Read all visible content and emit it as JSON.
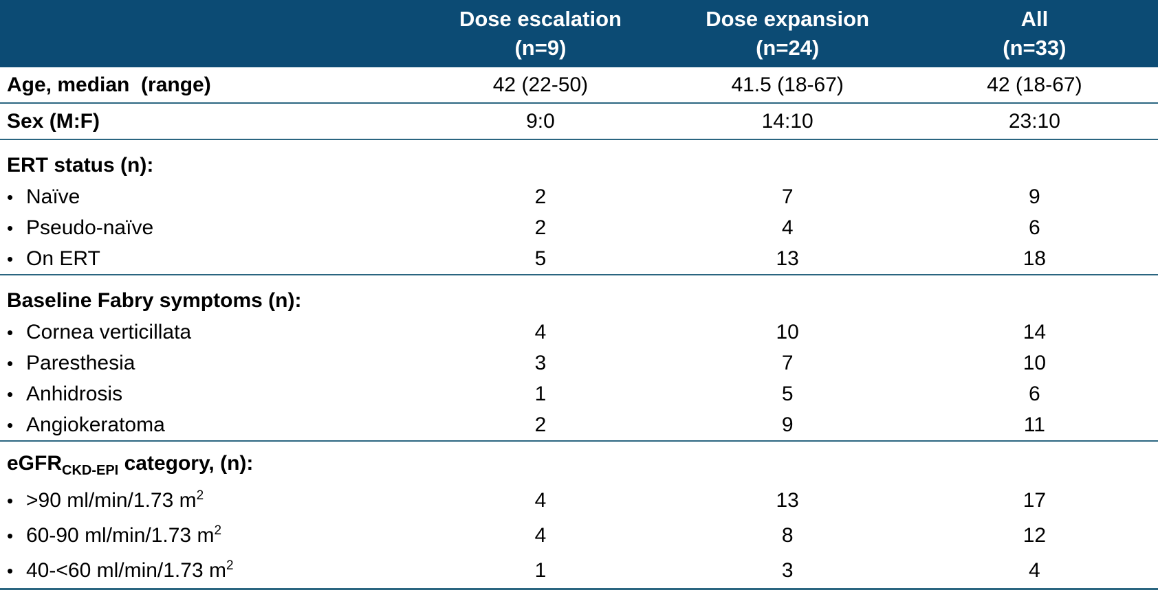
{
  "table": {
    "header": {
      "columns": [
        {
          "line1": "Dose escalation",
          "line2": "(n=9)"
        },
        {
          "line1": "Dose expansion",
          "line2": "(n=24)"
        },
        {
          "line1": "All",
          "line2": "(n=33)"
        }
      ]
    },
    "simple_rows": [
      {
        "label": "Age, median  (range)",
        "values": [
          "42 (22-50)",
          "41.5 (18-67)",
          "42 (18-67)"
        ]
      },
      {
        "label": "Sex (M:F)",
        "values": [
          "9:0",
          "14:10",
          "23:10"
        ]
      }
    ],
    "sections": [
      {
        "title": "ERT status (n):",
        "rows": [
          {
            "label": "Naïve",
            "values": [
              "2",
              "7",
              "9"
            ]
          },
          {
            "label": "Pseudo-naïve",
            "values": [
              "2",
              "4",
              "6"
            ]
          },
          {
            "label": "On ERT",
            "values": [
              "5",
              "13",
              "18"
            ]
          }
        ]
      },
      {
        "title": "Baseline Fabry symptoms (n):",
        "rows": [
          {
            "label": "Cornea verticillata",
            "values": [
              "4",
              "10",
              "14"
            ]
          },
          {
            "label": "Paresthesia",
            "values": [
              "3",
              "7",
              "10"
            ]
          },
          {
            "label": "Anhidrosis",
            "values": [
              "1",
              "5",
              "6"
            ]
          },
          {
            "label": "Angiokeratoma",
            "values": [
              "2",
              "9",
              "11"
            ]
          }
        ]
      },
      {
        "title_main": "eGFR",
        "title_sub": "CKD-EPI",
        "title_rest": "category, (n):",
        "rows": [
          {
            "label": ">90 ml/min/1.73 m",
            "sup": "2",
            "values": [
              "4",
              "13",
              "17"
            ]
          },
          {
            "label": "60-90 ml/min/1.73 m",
            "sup": "2",
            "values": [
              "4",
              "8",
              "12"
            ]
          },
          {
            "label": "40-<60 ml/min/1.73 m",
            "sup": "2",
            "values": [
              "1",
              "3",
              "4"
            ]
          }
        ]
      }
    ]
  },
  "glyphs": {
    "bullet": "•"
  },
  "colors": {
    "header_bg": "#0c4b74",
    "header_text": "#ffffff",
    "divider": "#2a6580",
    "body_text": "#000000",
    "page_bg": "#ffffff"
  }
}
